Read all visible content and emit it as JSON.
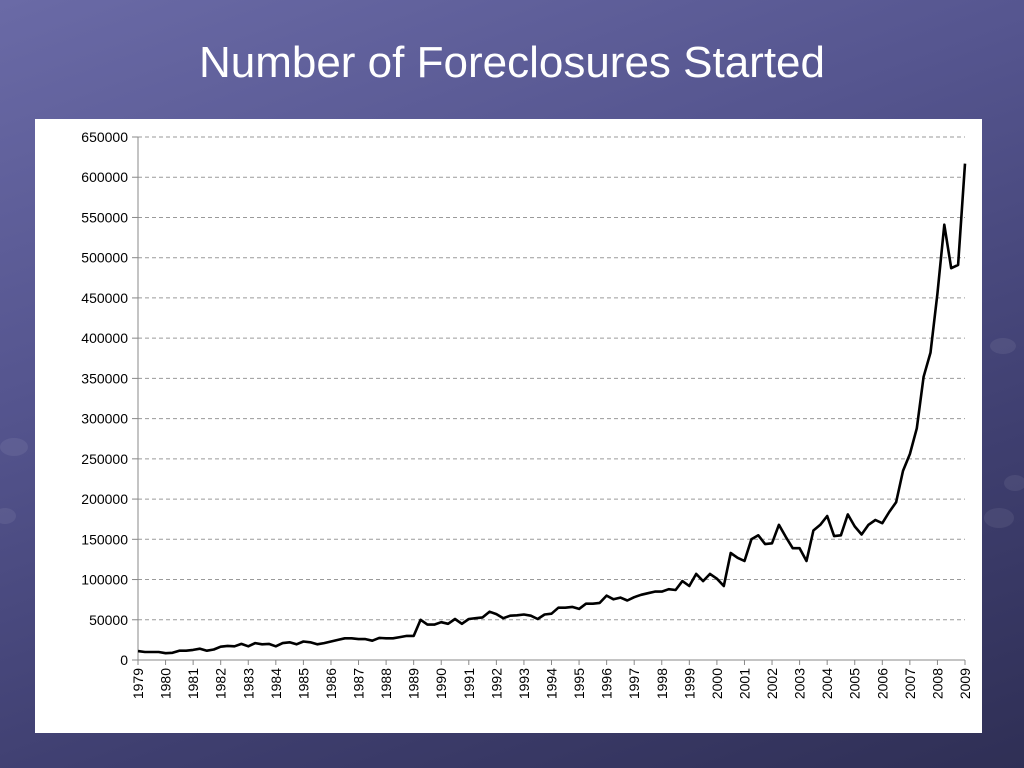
{
  "slide": {
    "title": "Number of Foreclosures Started"
  },
  "colors": {
    "background": "#5a5a96",
    "panel": "#ffffff",
    "line": "#000000",
    "grid": "#9a9a9a"
  },
  "chart_data": {
    "type": "line",
    "title": "Number of Foreclosures Started",
    "xlabel": "",
    "ylabel": "",
    "ylim": [
      0,
      650000
    ],
    "yticks": [
      0,
      50000,
      100000,
      150000,
      200000,
      250000,
      300000,
      350000,
      400000,
      450000,
      500000,
      550000,
      600000,
      650000
    ],
    "ytick_labels": [
      "0",
      "50000",
      "100000",
      "150000",
      "200000",
      "250000",
      "300000",
      "350000",
      "400000",
      "450000",
      "500000",
      "550000",
      "600000",
      "650000"
    ],
    "xticks": [
      "1979",
      "1980",
      "1981",
      "1982",
      "1983",
      "1984",
      "1985",
      "1986",
      "1987",
      "1988",
      "1989",
      "1990",
      "1991",
      "1992",
      "1993",
      "1994",
      "1995",
      "1996",
      "1997",
      "1998",
      "1999",
      "2000",
      "2001",
      "2002",
      "2003",
      "2004",
      "2005",
      "2006",
      "2007",
      "2008",
      "2009"
    ],
    "xlim": [
      1979,
      2009
    ],
    "grid": "horizontal dashed",
    "legend": "none",
    "series": [
      {
        "color": "#000000",
        "x": [
          1979.0,
          1979.25,
          1979.5,
          1979.75,
          1980.0,
          1980.25,
          1980.5,
          1980.75,
          1981.0,
          1981.25,
          1981.5,
          1981.75,
          1982.0,
          1982.25,
          1982.5,
          1982.75,
          1983.0,
          1983.25,
          1983.5,
          1983.75,
          1984.0,
          1984.25,
          1984.5,
          1984.75,
          1985.0,
          1985.25,
          1985.5,
          1985.75,
          1986.0,
          1986.25,
          1986.5,
          1986.75,
          1987.0,
          1987.25,
          1987.5,
          1987.75,
          1988.0,
          1988.25,
          1988.5,
          1988.75,
          1989.0,
          1989.25,
          1989.5,
          1989.75,
          1990.0,
          1990.25,
          1990.5,
          1990.75,
          1991.0,
          1991.25,
          1991.5,
          1991.75,
          1992.0,
          1992.25,
          1992.5,
          1992.75,
          1993.0,
          1993.25,
          1993.5,
          1993.75,
          1994.0,
          1994.25,
          1994.5,
          1994.75,
          1995.0,
          1995.25,
          1995.5,
          1995.75,
          1996.0,
          1996.25,
          1996.5,
          1996.75,
          1997.0,
          1997.25,
          1997.5,
          1997.75,
          1998.0,
          1998.25,
          1998.5,
          1998.75,
          1999.0,
          1999.25,
          1999.5,
          1999.75,
          2000.0,
          2000.25,
          2000.5,
          2000.75,
          2001.0,
          2001.25,
          2001.5,
          2001.75,
          2002.0,
          2002.25,
          2002.5,
          2002.75,
          2003.0,
          2003.25,
          2003.5,
          2003.75,
          2004.0,
          2004.25,
          2004.5,
          2004.75,
          2005.0,
          2005.25,
          2005.5,
          2005.75,
          2006.0,
          2006.25,
          2006.5,
          2006.75,
          2007.0,
          2007.25,
          2007.5,
          2007.75,
          2008.0,
          2008.25,
          2008.5,
          2008.75,
          2009.0
        ],
        "y": [
          11000,
          10000,
          10000,
          10000,
          8500,
          9000,
          11500,
          11500,
          12500,
          14000,
          11500,
          13000,
          16500,
          17500,
          17000,
          20000,
          17000,
          21000,
          19500,
          20000,
          17000,
          21000,
          22000,
          19500,
          23000,
          22000,
          19500,
          21000,
          23000,
          25000,
          27000,
          27000,
          26000,
          26000,
          24000,
          27500,
          27000,
          27000,
          28500,
          30000,
          30000,
          50000,
          44000,
          44000,
          47000,
          45000,
          51000,
          45000,
          51000,
          52000,
          53000,
          60000,
          57000,
          52000,
          55000,
          55500,
          56500,
          55000,
          51000,
          56500,
          57500,
          65000,
          65000,
          66000,
          63500,
          70000,
          70000,
          71000,
          80000,
          75500,
          77500,
          74000,
          78000,
          81000,
          83000,
          85000,
          85000,
          88000,
          87000,
          98000,
          92000,
          107000,
          98000,
          107000,
          101000,
          92000,
          133000,
          127000,
          123000,
          150000,
          155000,
          144000,
          145000,
          168000,
          153000,
          139000,
          139000,
          123000,
          161000,
          168000,
          179000,
          154000,
          155000,
          181000,
          166000,
          156000,
          168000,
          174000,
          170000,
          184000,
          196000,
          235000,
          256000,
          288000,
          352000,
          382000,
          455000,
          541000,
          487000,
          491000,
          617000
        ]
      }
    ]
  }
}
